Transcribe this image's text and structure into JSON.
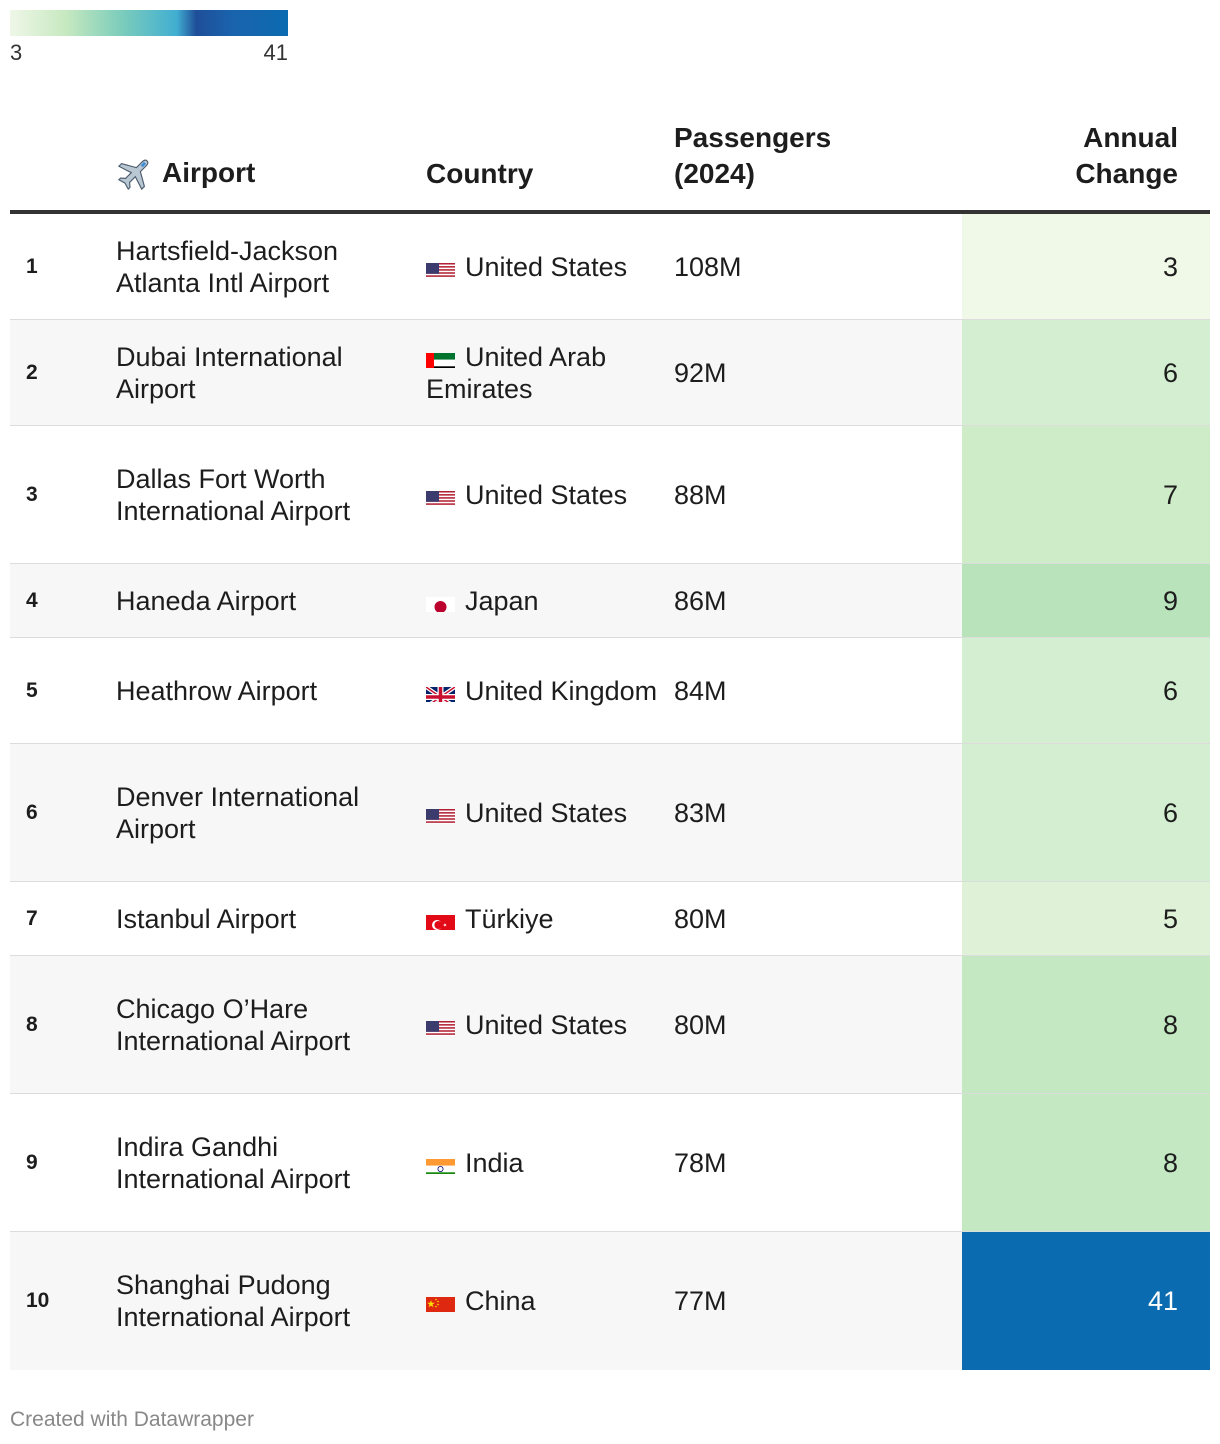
{
  "legend": {
    "min_label": "3",
    "max_label": "41",
    "colors": [
      "#eff7e8",
      "#c7e9c0",
      "#7ccdbb",
      "#41aed1",
      "#1f4e99",
      "#0b6bb0"
    ]
  },
  "header": {
    "airport": "Airport",
    "airport_icon": "airplane-icon",
    "country": "Country",
    "passengers": "Passengers (2024)",
    "change": "Annual Change"
  },
  "chart_data": {
    "type": "table",
    "columns": [
      "",
      "Airport",
      "Country",
      "Passengers (2024)",
      "Annual Change"
    ],
    "rows": [
      {
        "rank": "1",
        "airport": "Hartsfield-Jackson Atlanta Intl Airport",
        "country": "United States",
        "flag": "us",
        "passengers": "108M",
        "change": 3,
        "change_label": "3",
        "color": "#f0f8e8"
      },
      {
        "rank": "2",
        "airport": "Dubai International Airport",
        "country": "United Arab Emirates",
        "flag": "ae",
        "passengers": "92M",
        "change": 6,
        "change_label": "6",
        "color": "#d3eed0"
      },
      {
        "rank": "3",
        "airport": "Dallas Fort Worth International Airport",
        "country": "United States",
        "flag": "us",
        "passengers": "88M",
        "change": 7,
        "change_label": "7",
        "color": "#cdecc7"
      },
      {
        "rank": "4",
        "airport": "Haneda Airport",
        "country": "Japan",
        "flag": "jp",
        "passengers": "86M",
        "change": 9,
        "change_label": "9",
        "color": "#b8e3bb"
      },
      {
        "rank": "5",
        "airport": "Heathrow Airport",
        "country": "United Kingdom",
        "flag": "gb",
        "passengers": "84M",
        "change": 6,
        "change_label": "6",
        "color": "#d3eed0"
      },
      {
        "rank": "6",
        "airport": "Denver International Airport",
        "country": "United States",
        "flag": "us",
        "passengers": "83M",
        "change": 6,
        "change_label": "6",
        "color": "#d3eed0"
      },
      {
        "rank": "7",
        "airport": "Istanbul Airport",
        "country": "Türkiye",
        "flag": "tr",
        "passengers": "80M",
        "change": 5,
        "change_label": "5",
        "color": "#dff2d8"
      },
      {
        "rank": "8",
        "airport": "Chicago O’Hare International Airport",
        "country": "United States",
        "flag": "us",
        "passengers": "80M",
        "change": 8,
        "change_label": "8",
        "color": "#c3e8c2"
      },
      {
        "rank": "9",
        "airport": "Indira Gandhi International Airport",
        "country": "India",
        "flag": "in",
        "passengers": "78M",
        "change": 8,
        "change_label": "8",
        "color": "#c3e8c2"
      },
      {
        "rank": "10",
        "airport": "Shanghai Pudong International Airport",
        "country": "China",
        "flag": "cn",
        "passengers": "77M",
        "change": 41,
        "change_label": "41",
        "color": "#0b6bb0"
      }
    ]
  },
  "footer": {
    "credit": "Created with Datawrapper"
  }
}
